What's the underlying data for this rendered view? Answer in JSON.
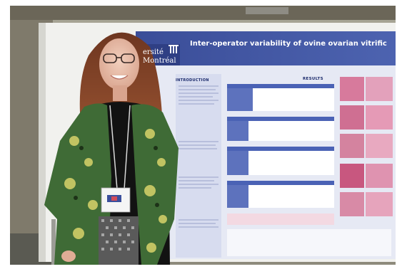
{
  "poster": {
    "title": "Inter-operator variability of ovine ovarian vitrific",
    "university_line1": "ersité",
    "university_line2": "Montréal",
    "section_introduction": "INTRODUCTION",
    "section_results": "RESULTS"
  },
  "colors": {
    "poster_header": "#3b4f9c",
    "poster_body": "#e9ecf6",
    "poster_table_header": "#4a62b5",
    "backdrop_wall": "#b9b4a4",
    "sweater": "#111111",
    "scarf_green": "#3f6b36",
    "hair": "#7a3f24"
  }
}
